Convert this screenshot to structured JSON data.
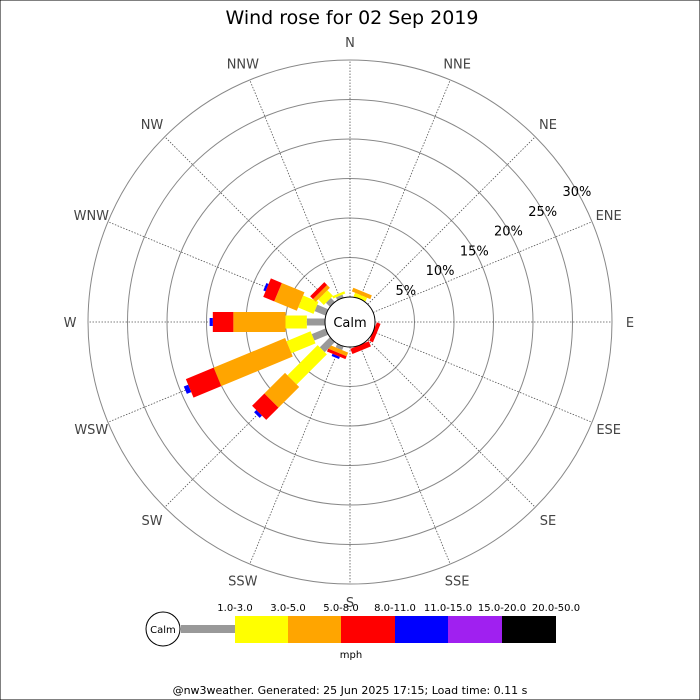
{
  "title": "Wind rose for 02 Sep 2019",
  "calm_label": "Calm",
  "unit_label": "mph",
  "footer": "@nw3weather. Generated: 25 Jun 2025 17:15; Load time: 0.11 s",
  "ring_labels": [
    "5%",
    "10%",
    "15%",
    "20%",
    "25%",
    "30%"
  ],
  "chart_data": {
    "type": "windrose",
    "title": "Wind rose for 02 Sep 2019",
    "directions": [
      "N",
      "NNE",
      "NE",
      "ENE",
      "E",
      "ESE",
      "SE",
      "SSE",
      "S",
      "SSW",
      "SW",
      "WSW",
      "W",
      "WNW",
      "NW",
      "NNW"
    ],
    "radial_max_percent": 30,
    "radial_ticks": [
      5,
      10,
      15,
      20,
      25,
      30
    ],
    "speed_bins": [
      {
        "label": "1.0-3.0",
        "color": "#999999"
      },
      {
        "label": "3.0-5.0",
        "color": "#ffff00"
      },
      {
        "label": "5.0-8.0",
        "color": "#ffa500"
      },
      {
        "label": "8.0-11.0",
        "color": "#ff0000"
      },
      {
        "label": "11.0-15.0",
        "color": "#0000ff"
      },
      {
        "label": "15.0-20.0",
        "color": "#a020f0"
      },
      {
        "label": "20.0-50.0",
        "color": "#000000"
      }
    ],
    "series": [
      {
        "direction": "N",
        "values": [
          0.0,
          0.0,
          0.0,
          0.0,
          0.0,
          0.0,
          0.0
        ]
      },
      {
        "direction": "NNE",
        "values": [
          0.0,
          0.5,
          0.5,
          0.0,
          0.0,
          0.0,
          0.0
        ]
      },
      {
        "direction": "NE",
        "values": [
          0.0,
          0.0,
          0.0,
          0.0,
          0.0,
          0.0,
          0.0
        ]
      },
      {
        "direction": "ENE",
        "values": [
          0.0,
          0.0,
          0.0,
          0.0,
          0.0,
          0.0,
          0.0
        ]
      },
      {
        "direction": "E",
        "values": [
          0.0,
          0.0,
          0.0,
          0.0,
          0.0,
          0.0,
          0.0
        ]
      },
      {
        "direction": "ESE",
        "values": [
          0.0,
          0.0,
          0.0,
          0.5,
          0.0,
          0.0,
          0.0
        ]
      },
      {
        "direction": "SE",
        "values": [
          0.0,
          0.0,
          0.0,
          0.0,
          0.0,
          0.0,
          0.0
        ]
      },
      {
        "direction": "SSE",
        "values": [
          0.0,
          0.0,
          0.0,
          0.7,
          0.0,
          0.0,
          0.0
        ]
      },
      {
        "direction": "S",
        "values": [
          0.0,
          0.0,
          0.0,
          0.0,
          0.0,
          0.0,
          0.0
        ]
      },
      {
        "direction": "SSW",
        "values": [
          0.5,
          0.0,
          0.5,
          0.4,
          0.3,
          0.0,
          0.0
        ]
      },
      {
        "direction": "SW",
        "values": [
          1.8,
          5.4,
          3.7,
          2.2,
          0.4,
          0.0,
          0.0
        ]
      },
      {
        "direction": "WSW",
        "values": [
          1.9,
          3.3,
          9.8,
          3.8,
          0.6,
          0.0,
          0.0
        ]
      },
      {
        "direction": "W",
        "values": [
          2.3,
          2.7,
          6.6,
          2.6,
          0.4,
          0.0,
          0.0
        ]
      },
      {
        "direction": "WNW",
        "values": [
          1.5,
          2.1,
          3.1,
          1.5,
          0.3,
          0.0,
          0.0
        ]
      },
      {
        "direction": "NW",
        "values": [
          0.7,
          1.0,
          0.5,
          0.5,
          0.0,
          0.0,
          0.0
        ]
      },
      {
        "direction": "NNW",
        "values": [
          0.4,
          0.3,
          0.0,
          0.0,
          0.0,
          0.0,
          0.0
        ]
      }
    ]
  }
}
